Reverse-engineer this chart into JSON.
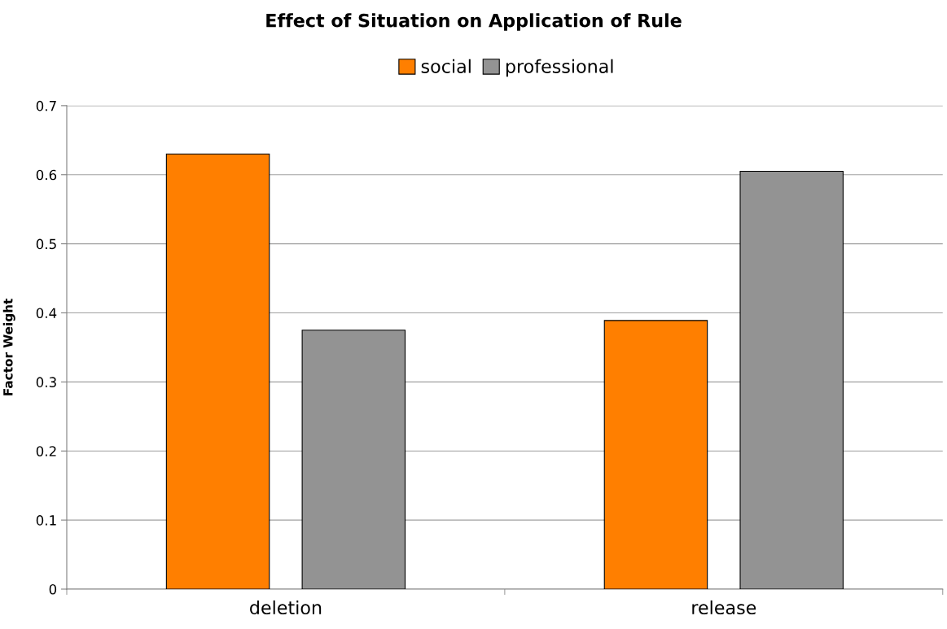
{
  "chart_data": {
    "type": "bar",
    "title": "Effect of Situation on Application of Rule",
    "ylabel": "Factor Weight",
    "categories": [
      "deletion",
      "release"
    ],
    "series": [
      {
        "name": "social",
        "color": "#ff7f00",
        "values": [
          0.63,
          0.389
        ]
      },
      {
        "name": "professional",
        "color": "#939393",
        "values": [
          0.375,
          0.605
        ]
      }
    ],
    "ylim": [
      0,
      0.7
    ],
    "yticks": [
      {
        "value": 0,
        "label": "0"
      },
      0.1,
      0.2,
      0.3,
      0.4,
      0.5,
      0.6,
      0.7
    ],
    "grid": "y",
    "legend": "top"
  }
}
